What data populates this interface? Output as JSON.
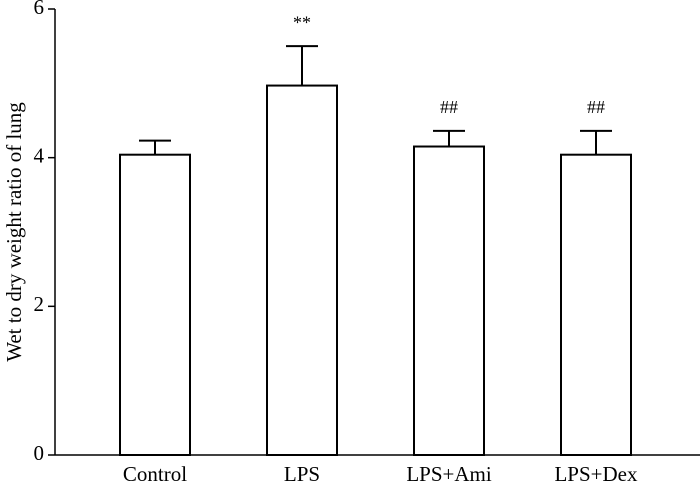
{
  "chart_data": {
    "type": "bar",
    "y_label": "Wet to dry weight ratio of lung",
    "categories": [
      "Control",
      "LPS",
      "LPS+Ami",
      "LPS+Dex"
    ],
    "values": [
      4.04,
      4.97,
      4.15,
      4.04
    ],
    "errors": [
      0.19,
      0.53,
      0.21,
      0.32
    ],
    "annotations": [
      null,
      "**",
      "##",
      "##"
    ],
    "color": "#ffffff",
    "ylim": [
      0,
      6
    ],
    "yticks": [
      0,
      2,
      4,
      6
    ]
  }
}
